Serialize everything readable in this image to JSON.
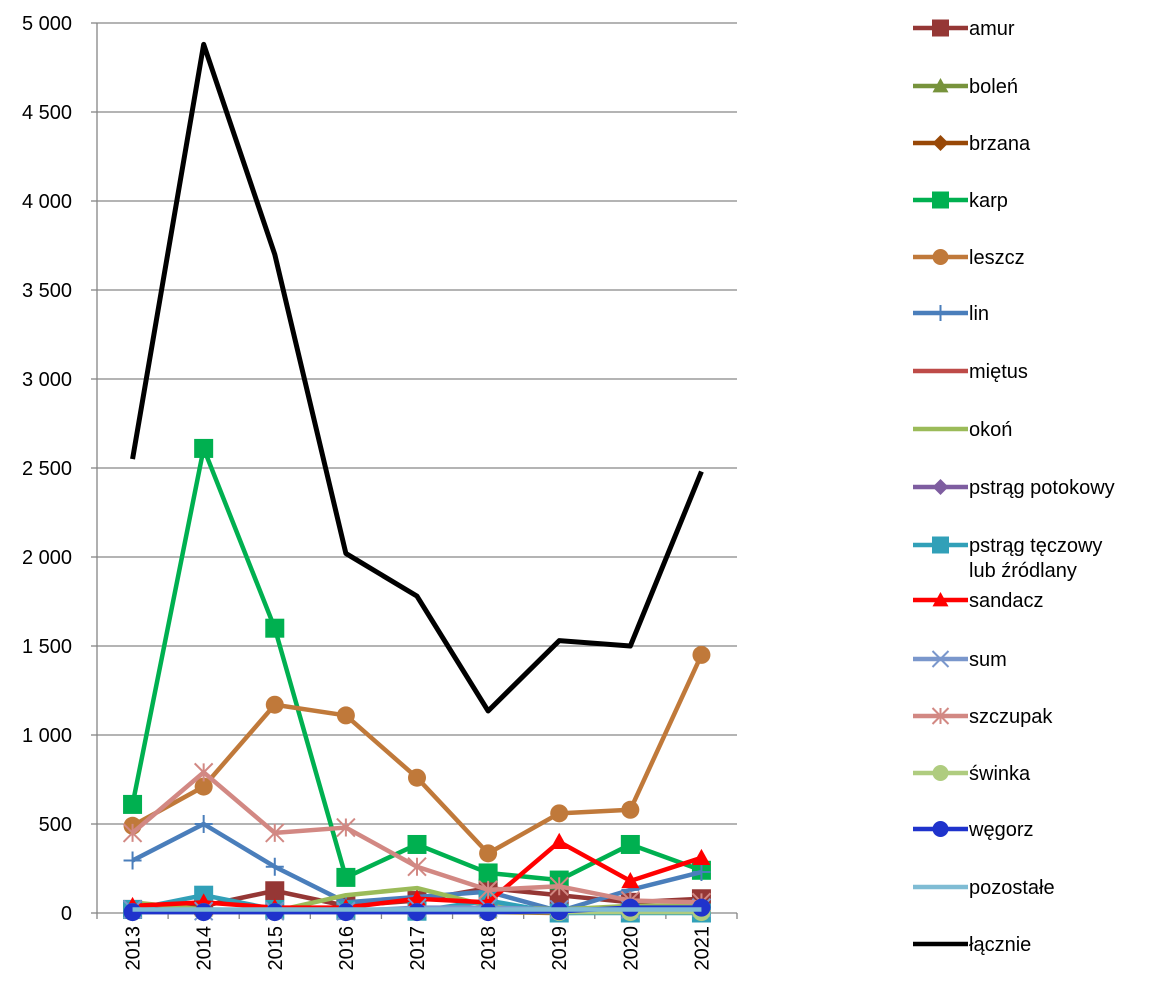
{
  "chart_data": {
    "type": "line",
    "title": "",
    "xlabel": "",
    "ylabel": "",
    "ylim": [
      0,
      5000
    ],
    "yticks": [
      0,
      500,
      1000,
      1500,
      2000,
      2500,
      3000,
      3500,
      4000,
      4500,
      5000
    ],
    "ytick_labels": [
      "0",
      "500",
      "1 000",
      "1 500",
      "2 000",
      "2 500",
      "3 000",
      "3 500",
      "4 000",
      "4 500",
      "5 000"
    ],
    "categories": [
      "2013",
      "2014",
      "2015",
      "2016",
      "2017",
      "2018",
      "2019",
      "2020",
      "2021"
    ],
    "grid": "horizontal",
    "legend_position": "right",
    "series": [
      {
        "name": "amur",
        "color": "#953735",
        "marker": "square",
        "values": [
          20,
          40,
          125,
          40,
          70,
          140,
          100,
          60,
          80
        ]
      },
      {
        "name": "boleń",
        "color": "#77933C",
        "marker": "triangle",
        "values": [
          10,
          20,
          15,
          10,
          10,
          10,
          5,
          5,
          5
        ]
      },
      {
        "name": "brzana",
        "color": "#984807",
        "marker": "diamond",
        "values": [
          5,
          10,
          5,
          5,
          5,
          5,
          0,
          5,
          5
        ]
      },
      {
        "name": "karp",
        "color": "#00B050",
        "marker": "square",
        "values": [
          610,
          2610,
          1600,
          200,
          385,
          225,
          185,
          385,
          240
        ]
      },
      {
        "name": "leszcz",
        "color": "#C0793A",
        "marker": "circle",
        "values": [
          490,
          710,
          1170,
          1110,
          760,
          335,
          560,
          580,
          1450
        ]
      },
      {
        "name": "lin",
        "color": "#4A7EBB",
        "marker": "plus",
        "values": [
          295,
          500,
          260,
          60,
          90,
          120,
          10,
          130,
          230
        ]
      },
      {
        "name": "miętus",
        "color": "#BE4B48",
        "marker": "none",
        "values": [
          5,
          5,
          5,
          5,
          5,
          5,
          5,
          5,
          5
        ]
      },
      {
        "name": "okoń",
        "color": "#9BBB59",
        "marker": "none",
        "values": [
          60,
          20,
          10,
          100,
          140,
          40,
          20,
          40,
          40
        ]
      },
      {
        "name": "pstrąg potokowy",
        "color": "#7E5DA0",
        "marker": "diamond",
        "values": [
          5,
          5,
          5,
          5,
          5,
          5,
          5,
          5,
          5
        ]
      },
      {
        "name": "pstrąg tęczowy lub źródlany",
        "color": "#31A0B8",
        "marker": "square",
        "values": [
          20,
          100,
          20,
          15,
          10,
          70,
          0,
          0,
          0
        ]
      },
      {
        "name": "sandacz",
        "color": "#FF0000",
        "marker": "triangle",
        "values": [
          40,
          60,
          30,
          30,
          80,
          60,
          400,
          180,
          310
        ]
      },
      {
        "name": "sum",
        "color": "#7A97CC",
        "marker": "x",
        "values": [
          20,
          10,
          10,
          10,
          30,
          30,
          20,
          20,
          30
        ]
      },
      {
        "name": "szczupak",
        "color": "#D28883",
        "marker": "star",
        "values": [
          450,
          790,
          450,
          480,
          260,
          130,
          150,
          70,
          60
        ]
      },
      {
        "name": "świnka",
        "color": "#AFCC7F",
        "marker": "circle",
        "values": [
          5,
          5,
          5,
          5,
          5,
          5,
          5,
          5,
          5
        ]
      },
      {
        "name": "węgorz",
        "color": "#1F33CC",
        "marker": "circle",
        "values": [
          5,
          5,
          5,
          5,
          5,
          5,
          10,
          30,
          30
        ]
      },
      {
        "name": "pozostałe",
        "color": "#7FBCD4",
        "marker": "none",
        "values": [
          20,
          20,
          20,
          20,
          20,
          20,
          20,
          20,
          20
        ]
      },
      {
        "name": "łącznie",
        "color": "#000000",
        "marker": "none",
        "values": [
          2550,
          4880,
          3700,
          2020,
          1780,
          1135,
          1530,
          1500,
          2480
        ]
      }
    ]
  }
}
